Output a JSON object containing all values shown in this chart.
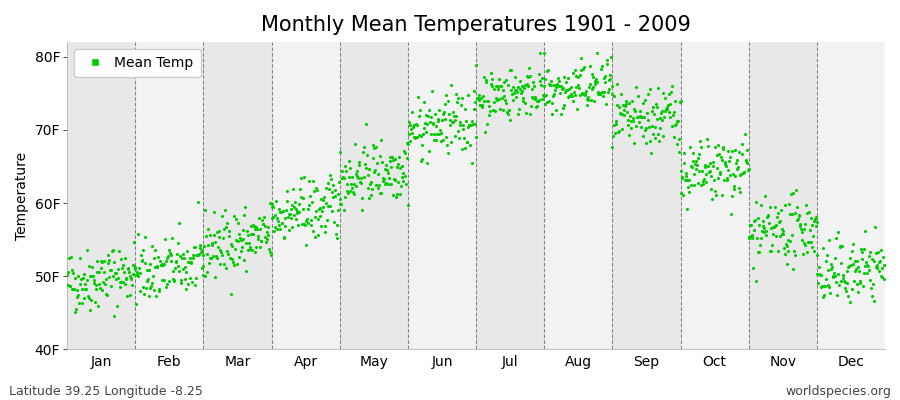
{
  "title": "Monthly Mean Temperatures 1901 - 2009",
  "ylabel": "Temperature",
  "footer_left": "Latitude 39.25 Longitude -8.25",
  "footer_right": "worldspecies.org",
  "legend_label": "Mean Temp",
  "dot_color": "#00CC00",
  "background_color": "#ffffff",
  "band_colors": [
    "#e8e8e8",
    "#f2f2f2"
  ],
  "yticks": [
    40,
    50,
    60,
    70,
    80
  ],
  "ytick_labels": [
    "40F",
    "50F",
    "60F",
    "70F",
    "80F"
  ],
  "ylim": [
    40,
    82
  ],
  "xlim": [
    0,
    12
  ],
  "months": [
    "Jan",
    "Feb",
    "Mar",
    "Apr",
    "May",
    "Jun",
    "Jul",
    "Aug",
    "Sep",
    "Oct",
    "Nov",
    "Dec"
  ],
  "monthly_means_C": [
    9.5,
    10.2,
    12.2,
    14.5,
    17.5,
    21.0,
    23.5,
    23.8,
    21.5,
    17.5,
    13.0,
    10.0
  ],
  "monthly_stds_C": [
    1.2,
    1.2,
    1.2,
    1.2,
    1.2,
    1.2,
    1.0,
    1.0,
    1.2,
    1.2,
    1.2,
    1.2
  ],
  "warming_trend_C_per_century": 0.8,
  "year_start": 1901,
  "year_end": 2009,
  "n_years": 109,
  "title_fontsize": 15,
  "axis_fontsize": 10,
  "tick_fontsize": 10,
  "footer_fontsize": 9,
  "dot_size": 5
}
